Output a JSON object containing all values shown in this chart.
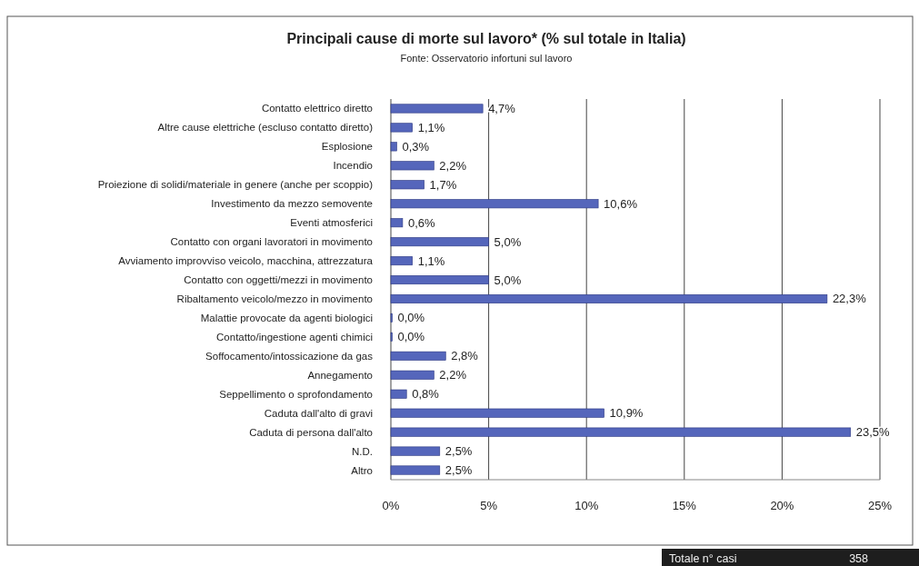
{
  "chart_data": {
    "type": "bar",
    "orientation": "horizontal",
    "title": "Principali cause di morte sul lavoro* (% sul totale in Italia)",
    "subtitle": "Fonte: Osservatorio infortuni sul lavoro",
    "categories": [
      "Contatto elettrico diretto",
      "Altre cause elettriche (escluso contatto diretto)",
      "Esplosione",
      "Incendio",
      "Proiezione di solidi/materiale in genere (anche per scoppio)",
      "Investimento da mezzo semovente",
      "Eventi atmosferici",
      "Contatto con organi lavoratori in movimento",
      "Avviamento improvviso veicolo, macchina, attrezzatura",
      "Contatto con oggetti/mezzi in movimento",
      "Ribaltamento veicolo/mezzo in movimento",
      "Malattie provocate da agenti biologici",
      "Contatto/ingestione agenti chimici",
      "Soffocamento/intossicazione da gas",
      "Annegamento",
      "Seppellimento o sprofondamento",
      "Caduta dall'alto di gravi",
      "Caduta di persona dall'alto",
      "N.D.",
      "Altro"
    ],
    "values": [
      4.7,
      1.1,
      0.3,
      2.2,
      1.7,
      10.6,
      0.6,
      5.0,
      1.1,
      5.0,
      22.3,
      0.0,
      0.0,
      2.8,
      2.2,
      0.8,
      10.9,
      23.5,
      2.5,
      2.5
    ],
    "value_labels": [
      "4,7%",
      "1,1%",
      "0,3%",
      "2,2%",
      "1,7%",
      "10,6%",
      "0,6%",
      "5,0%",
      "1,1%",
      "5,0%",
      "22,3%",
      "0,0%",
      "0,0%",
      "2,8%",
      "2,2%",
      "0,8%",
      "10,9%",
      "23,5%",
      "2,5%",
      "2,5%"
    ],
    "color": "#5566bb",
    "xlim": [
      0,
      25
    ],
    "xticks": [
      {
        "value": 0,
        "label": "0%"
      },
      {
        "value": 5,
        "label": "5%"
      },
      {
        "value": 10,
        "label": "10%"
      },
      {
        "value": 15,
        "label": "15%"
      },
      {
        "value": 20,
        "label": "20%"
      },
      {
        "value": 25,
        "label": "25%"
      }
    ],
    "grid": "x",
    "annotations": [
      "Totale n° casi",
      "358"
    ]
  }
}
